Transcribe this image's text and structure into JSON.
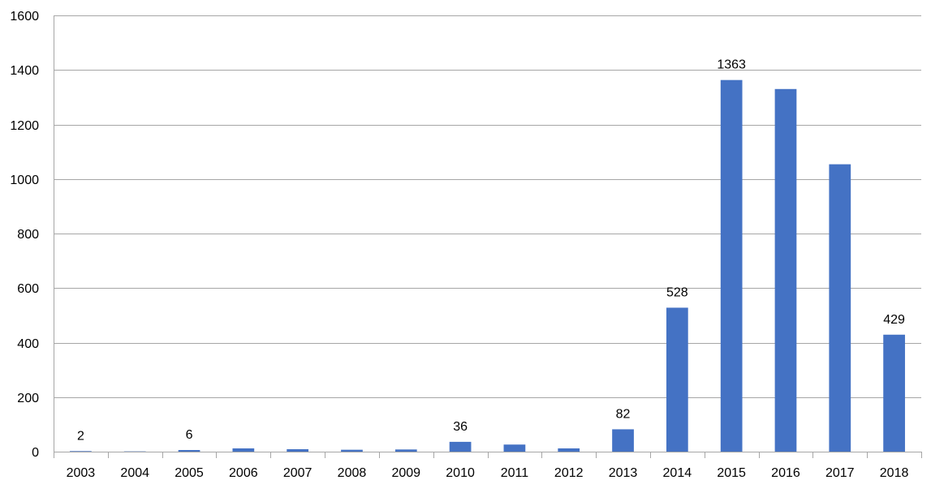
{
  "chart_data": {
    "type": "bar",
    "title": "",
    "xlabel": "",
    "ylabel": "",
    "categories": [
      "2003",
      "2004",
      "2005",
      "2006",
      "2007",
      "2008",
      "2009",
      "2010",
      "2011",
      "2012",
      "2013",
      "2014",
      "2015",
      "2016",
      "2017",
      "2018"
    ],
    "values": [
      2,
      1,
      6,
      12,
      9,
      7,
      8,
      36,
      26,
      12,
      82,
      528,
      1363,
      1330,
      1054,
      429
    ],
    "data_labels": [
      "2",
      "",
      "6",
      "",
      "",
      "",
      "",
      "36",
      "",
      "",
      "82",
      "528",
      "1363",
      "",
      "",
      "429"
    ],
    "ylim": [
      0,
      1600
    ],
    "yticks": [
      0,
      200,
      400,
      600,
      800,
      1000,
      1200,
      1400,
      1600
    ],
    "bar_color": "#4472c4",
    "grid": true,
    "legend": "none"
  }
}
